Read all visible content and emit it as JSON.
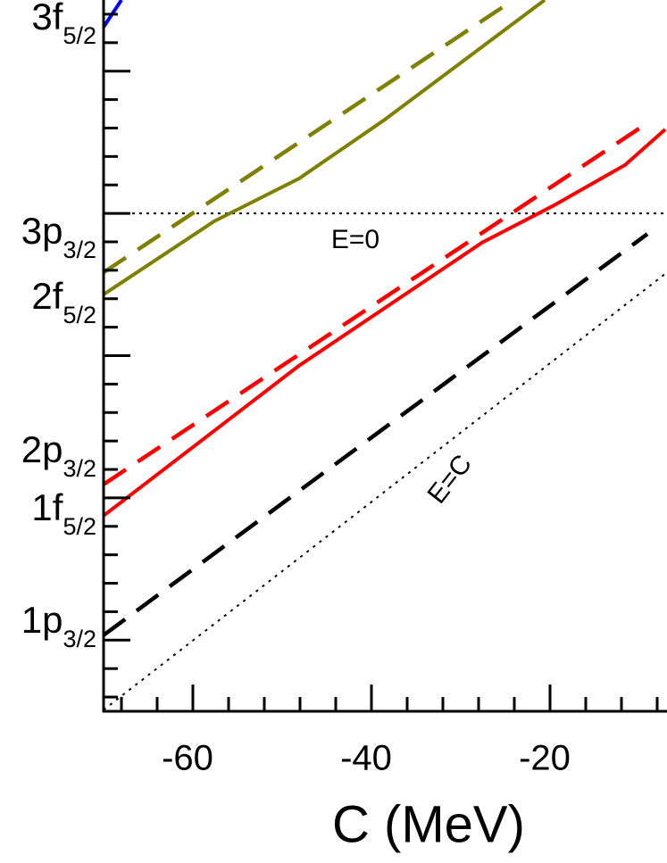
{
  "chart_data": {
    "type": "line",
    "x_label": "C (MeV)",
    "xlim": [
      -70,
      -7
    ],
    "ylim": [
      -70,
      30
    ],
    "xticks": [
      -60,
      -40,
      -20
    ],
    "xminor": [
      -68,
      -64,
      -56,
      -52,
      -48,
      -44,
      -36,
      -32,
      -28,
      -24,
      -16,
      -12,
      -8
    ],
    "yticks": [
      -60,
      -40,
      -20,
      0,
      20
    ],
    "yminor": [
      -68,
      -64,
      -56,
      -52,
      -48,
      -44,
      -36,
      -32,
      -28,
      -24,
      -16,
      -12,
      -8,
      -4,
      4,
      8,
      12,
      16,
      24,
      28
    ],
    "hline": {
      "value": 0,
      "label": "E=0"
    },
    "diagonal_label": "E=C",
    "levels": [
      {
        "text": "3f",
        "sub": "5/2"
      },
      {
        "text": "3p",
        "sub": "3/2"
      },
      {
        "text": "2f",
        "sub": "5/2"
      },
      {
        "text": "2p",
        "sub": "3/2"
      },
      {
        "text": "1f",
        "sub": "5/2"
      },
      {
        "text": "1p",
        "sub": "3/2"
      }
    ],
    "series": [
      {
        "color": "#000000",
        "style": "dotted",
        "x": [
          -70,
          -7
        ],
        "values": [
          -69.8,
          -8.4
        ]
      },
      {
        "color": "#000000",
        "style": "dashed",
        "x": [
          -70,
          -9.1
        ],
        "values": [
          -59.3,
          -2.9
        ]
      },
      {
        "color": "#ff0000",
        "style": "solid",
        "x": [
          -70,
          -48.1,
          -27.6,
          -19.6,
          -11.6,
          -7.1
        ],
        "values": [
          -42.5,
          -21.4,
          -4.1,
          1.1,
          6.8,
          11.8
        ]
      },
      {
        "color": "#ff0000",
        "style": "dashed",
        "x": [
          -70,
          -9.1
        ],
        "values": [
          -38.1,
          12.7
        ]
      },
      {
        "color": "#808000",
        "style": "solid",
        "x": [
          -70,
          -57.6,
          -48.1,
          -38.6,
          -20.6
        ],
        "values": [
          -11.4,
          -1.1,
          4.9,
          13.1,
          30
        ]
      },
      {
        "color": "#808000",
        "style": "dashed",
        "x": [
          -70,
          -24.1
        ],
        "values": [
          -8.3,
          30
        ]
      },
      {
        "color": "#0000ff",
        "style": "solid",
        "x": [
          -70,
          -68
        ],
        "values": [
          26.2,
          30
        ]
      }
    ]
  }
}
